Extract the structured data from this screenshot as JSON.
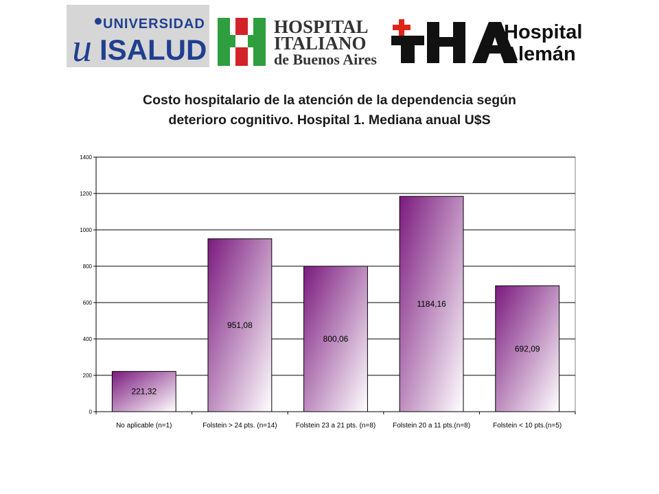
{
  "logos": {
    "isalud": {
      "line1": "UNIVERSIDAD",
      "line2": "ISALUD",
      "mark": "u",
      "color": "#1f3f8f"
    },
    "italiano": {
      "line1": "HOSPITAL",
      "line2": "ITALIANO",
      "line3": "de Buenos Aires",
      "cross_color": "#2e9e3e",
      "accent_color": "#d2232a"
    },
    "aleman": {
      "mark": "HA",
      "line1": "Hospital",
      "line2": "Alemán",
      "accent_color": "#e2231a"
    }
  },
  "title_line1": "Costo hospitalario de la atención de la dependencia según",
  "title_line2": "deterioro cognitivo. Hospital 1. Mediana anual U$S",
  "chart_data": {
    "type": "bar",
    "title": "Costo hospitalario de la atención de la dependencia según deterioro cognitivo. Hospital 1. Mediana anual U$S",
    "xlabel": "",
    "ylabel": "",
    "categories": [
      "No aplicable (n=1)",
      "Folstein > 24 pts. (n=14)",
      "Folstein 23 a 21 pts. (n=8)",
      "Folstein 20 a 11 pts.(n=8)",
      "Folstein < 10 pts.(n=5)"
    ],
    "values": [
      221.32,
      951.08,
      800.06,
      1184.16,
      692.09
    ],
    "value_labels": [
      "221,32",
      "951,08",
      "800,06",
      "1184,16",
      "692,09"
    ],
    "yticks": [
      0,
      200,
      400,
      600,
      800,
      1000,
      1200,
      1400
    ],
    "ylim": [
      0,
      1400
    ],
    "grid": true,
    "legend": "none",
    "bar_color_top": "#7b1a7e",
    "bar_color_bottom": "#ffffff"
  }
}
